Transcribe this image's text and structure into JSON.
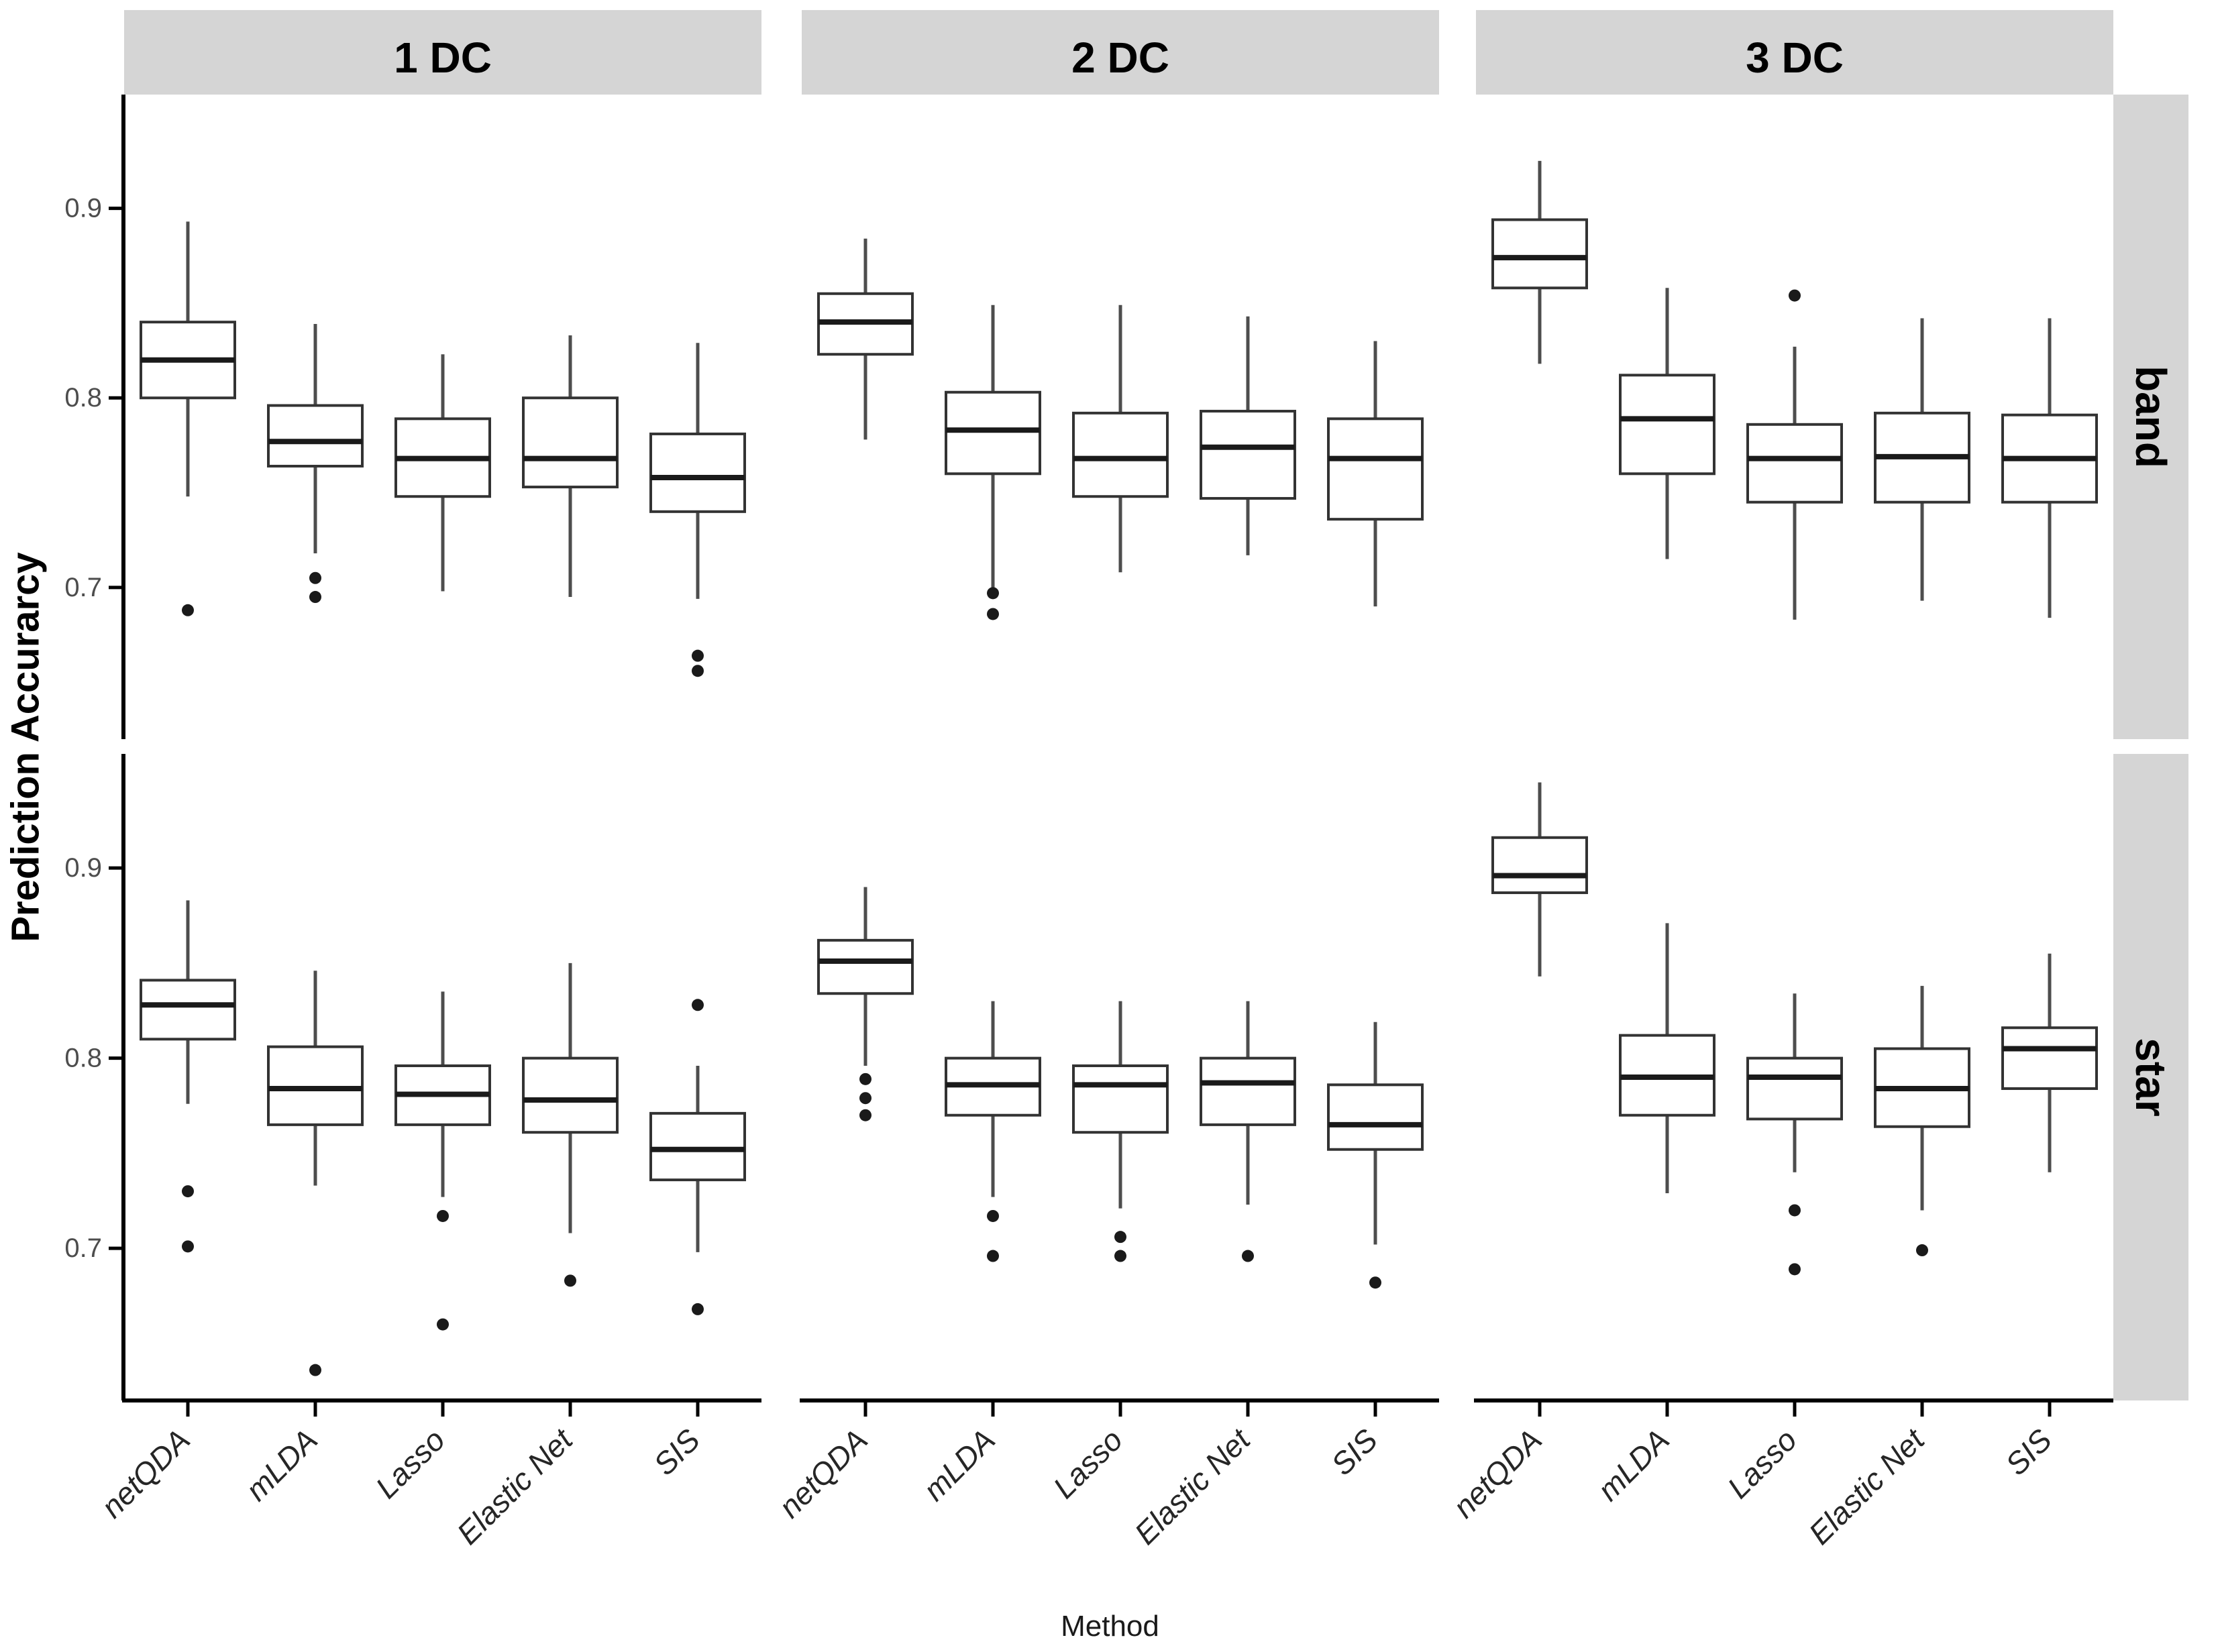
{
  "chart_data": {
    "type": "boxplot",
    "title": "",
    "xlabel": "Method",
    "ylabel": "Prediction Accurarcy",
    "col_facets": [
      "1 DC",
      "2 DC",
      "3 DC"
    ],
    "row_facets": [
      "band",
      "star"
    ],
    "methods": [
      "netQDA",
      "mLDA",
      "Lasso",
      "Elastic Net",
      "SIS"
    ],
    "y_ticks": [
      0.9,
      0.8,
      0.7
    ],
    "ylim": [
      0.62,
      0.96
    ],
    "grid": "off",
    "legend": "none",
    "cells": [
      {
        "row": "band",
        "col": "1 DC",
        "boxes": [
          {
            "method": "netQDA",
            "low": 0.748,
            "q1": 0.8,
            "med": 0.82,
            "q3": 0.84,
            "high": 0.893,
            "outliers": [
              0.688
            ]
          },
          {
            "method": "mLDA",
            "low": 0.718,
            "q1": 0.764,
            "med": 0.777,
            "q3": 0.796,
            "high": 0.839,
            "outliers": [
              0.705,
              0.695
            ]
          },
          {
            "method": "Lasso",
            "low": 0.698,
            "q1": 0.748,
            "med": 0.768,
            "q3": 0.789,
            "high": 0.823,
            "outliers": []
          },
          {
            "method": "Elastic Net",
            "low": 0.695,
            "q1": 0.753,
            "med": 0.768,
            "q3": 0.8,
            "high": 0.833,
            "outliers": []
          },
          {
            "method": "SIS",
            "low": 0.694,
            "q1": 0.74,
            "med": 0.758,
            "q3": 0.781,
            "high": 0.829,
            "outliers": [
              0.664,
              0.656
            ]
          }
        ]
      },
      {
        "row": "band",
        "col": "2 DC",
        "boxes": [
          {
            "method": "netQDA",
            "low": 0.778,
            "q1": 0.823,
            "med": 0.84,
            "q3": 0.855,
            "high": 0.884,
            "outliers": []
          },
          {
            "method": "mLDA",
            "low": 0.7,
            "q1": 0.76,
            "med": 0.783,
            "q3": 0.803,
            "high": 0.849,
            "outliers": [
              0.697,
              0.686
            ]
          },
          {
            "method": "Lasso",
            "low": 0.708,
            "q1": 0.748,
            "med": 0.768,
            "q3": 0.792,
            "high": 0.849,
            "outliers": []
          },
          {
            "method": "Elastic Net",
            "low": 0.717,
            "q1": 0.747,
            "med": 0.774,
            "q3": 0.793,
            "high": 0.843,
            "outliers": []
          },
          {
            "method": "SIS",
            "low": 0.69,
            "q1": 0.736,
            "med": 0.768,
            "q3": 0.789,
            "high": 0.83,
            "outliers": []
          }
        ]
      },
      {
        "row": "band",
        "col": "3 DC",
        "boxes": [
          {
            "method": "netQDA",
            "low": 0.818,
            "q1": 0.858,
            "med": 0.874,
            "q3": 0.894,
            "high": 0.925,
            "outliers": []
          },
          {
            "method": "mLDA",
            "low": 0.715,
            "q1": 0.76,
            "med": 0.789,
            "q3": 0.812,
            "high": 0.858,
            "outliers": []
          },
          {
            "method": "Lasso",
            "low": 0.683,
            "q1": 0.745,
            "med": 0.768,
            "q3": 0.786,
            "high": 0.827,
            "outliers": [
              0.854
            ]
          },
          {
            "method": "Elastic Net",
            "low": 0.693,
            "q1": 0.745,
            "med": 0.769,
            "q3": 0.792,
            "high": 0.842,
            "outliers": []
          },
          {
            "method": "SIS",
            "low": 0.684,
            "q1": 0.745,
            "med": 0.768,
            "q3": 0.791,
            "high": 0.842,
            "outliers": []
          }
        ]
      },
      {
        "row": "star",
        "col": "1 DC",
        "boxes": [
          {
            "method": "netQDA",
            "low": 0.776,
            "q1": 0.81,
            "med": 0.828,
            "q3": 0.841,
            "high": 0.883,
            "outliers": [
              0.73,
              0.701
            ]
          },
          {
            "method": "mLDA",
            "low": 0.733,
            "q1": 0.765,
            "med": 0.784,
            "q3": 0.806,
            "high": 0.846,
            "outliers": [
              0.636
            ]
          },
          {
            "method": "Lasso",
            "low": 0.727,
            "q1": 0.765,
            "med": 0.781,
            "q3": 0.796,
            "high": 0.835,
            "outliers": [
              0.717,
              0.66
            ]
          },
          {
            "method": "Elastic Net",
            "low": 0.708,
            "q1": 0.761,
            "med": 0.778,
            "q3": 0.8,
            "high": 0.85,
            "outliers": [
              0.683
            ]
          },
          {
            "method": "SIS",
            "low": 0.698,
            "q1": 0.736,
            "med": 0.752,
            "q3": 0.771,
            "high": 0.796,
            "outliers": [
              0.828,
              0.668
            ]
          }
        ]
      },
      {
        "row": "star",
        "col": "2 DC",
        "boxes": [
          {
            "method": "netQDA",
            "low": 0.796,
            "q1": 0.834,
            "med": 0.851,
            "q3": 0.862,
            "high": 0.89,
            "outliers": [
              0.789,
              0.779,
              0.77
            ]
          },
          {
            "method": "mLDA",
            "low": 0.727,
            "q1": 0.77,
            "med": 0.786,
            "q3": 0.8,
            "high": 0.83,
            "outliers": [
              0.717,
              0.696
            ]
          },
          {
            "method": "Lasso",
            "low": 0.721,
            "q1": 0.761,
            "med": 0.786,
            "q3": 0.796,
            "high": 0.83,
            "outliers": [
              0.706,
              0.696
            ]
          },
          {
            "method": "Elastic Net",
            "low": 0.723,
            "q1": 0.765,
            "med": 0.787,
            "q3": 0.8,
            "high": 0.83,
            "outliers": [
              0.696
            ]
          },
          {
            "method": "SIS",
            "low": 0.702,
            "q1": 0.752,
            "med": 0.765,
            "q3": 0.786,
            "high": 0.819,
            "outliers": [
              0.682
            ]
          }
        ]
      },
      {
        "row": "star",
        "col": "3 DC",
        "boxes": [
          {
            "method": "netQDA",
            "low": 0.843,
            "q1": 0.887,
            "med": 0.896,
            "q3": 0.916,
            "high": 0.945,
            "outliers": []
          },
          {
            "method": "mLDA",
            "low": 0.729,
            "q1": 0.77,
            "med": 0.79,
            "q3": 0.812,
            "high": 0.871,
            "outliers": []
          },
          {
            "method": "Lasso",
            "low": 0.74,
            "q1": 0.768,
            "med": 0.79,
            "q3": 0.8,
            "high": 0.834,
            "outliers": [
              0.72,
              0.689
            ]
          },
          {
            "method": "Elastic Net",
            "low": 0.72,
            "q1": 0.764,
            "med": 0.784,
            "q3": 0.805,
            "high": 0.838,
            "outliers": [
              0.699
            ]
          },
          {
            "method": "SIS",
            "low": 0.74,
            "q1": 0.784,
            "med": 0.805,
            "q3": 0.816,
            "high": 0.855,
            "outliers": []
          }
        ]
      }
    ],
    "colors": {
      "strip_bg": "#d5d5d5",
      "strip_text": "#000000",
      "box_border": "#333333",
      "box_fill": "#ffffff",
      "median": "#1a1a1a",
      "whisker": "#4d4d4d",
      "outlier": "#1a1a1a",
      "axis_line": "#000000",
      "tick_label": "#4d4d4d",
      "x_cat_label": "#262626"
    }
  }
}
